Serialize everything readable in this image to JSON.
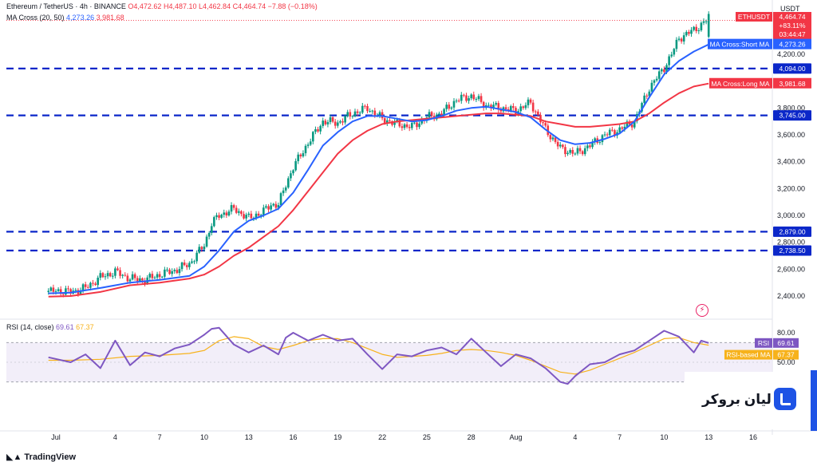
{
  "legend": {
    "symbol": "Ethereum / TetherUS · 4h · BINANCE",
    "open": "O4,472.62",
    "high": "H4,487.10",
    "low": "L4,462.84",
    "close": "C4,464.74",
    "change": "−7.88 (−0.18%)",
    "ma_label": "MA Cross (20, 50)",
    "ma_short": "4,273.26",
    "ma_long": "3,981.68",
    "rsi_label": "RSI (14, close)",
    "rsi_value": "69.61",
    "rsi_ma_value": "67.37"
  },
  "axis": {
    "currency": "USDT",
    "price_ticks": [
      "4,200.00",
      "3,800.00",
      "3,600.00",
      "3,400.00",
      "3,200.00",
      "3,000.00",
      "2,800.00",
      "2,600.00",
      "2,400.00"
    ],
    "rsi_ticks": [
      "80.00",
      "50.00"
    ],
    "x_ticks": [
      "Jul",
      "4",
      "7",
      "10",
      "13",
      "16",
      "19",
      "22",
      "25",
      "28",
      "Aug",
      "4",
      "7",
      "10",
      "13",
      "16"
    ]
  },
  "tags": {
    "symbol_tag": "ETHUSDT",
    "symbol_price": "4,464.74",
    "pct": "+83.11%",
    "countdown": "03:44:47",
    "short_ma_label": "MA Cross:Short MA",
    "short_ma_value": "4,273.26",
    "long_ma_label": "MA Cross:Long MA",
    "long_ma_value": "3,981.68",
    "level_4094": "4,094.00",
    "level_3745": "3,745.00",
    "level_2879": "2,879.00",
    "level_2738": "2,738.50",
    "rsi_tag": "RSI",
    "rsi_tag_value": "69.61",
    "rsi_ma_tag": "RSI-based MA",
    "rsi_ma_tag_value": "67.37"
  },
  "brand": {
    "name": "لیان بروکر",
    "tradingview": "TradingView"
  },
  "colors": {
    "up": "#089981",
    "down": "#f23645",
    "short_ma": "#2962ff",
    "long_ma": "#f23645",
    "level": "#0b27c9",
    "rsi": "#7e57c2",
    "rsi_ma": "#f7b21b",
    "rsi_band": "#ede7f6"
  },
  "chart_data": [
    {
      "type": "candlestick",
      "title": "Ethereum / TetherUS · 4h · BINANCE",
      "ylabel": "USDT",
      "ylim": [
        2300,
        4550
      ],
      "x_range_days": [
        29.5,
        47
      ],
      "x_tick_days": [
        30,
        34,
        37,
        40,
        43,
        46,
        49,
        52,
        55,
        58,
        61,
        65,
        68,
        71,
        74,
        77
      ],
      "series": [
        {
          "name": "Close",
          "type": "line",
          "x": [
            29.5,
            30,
            31,
            32,
            33,
            34,
            35,
            36,
            37,
            38,
            39,
            40,
            40.5,
            41,
            42,
            43,
            44,
            44.5,
            45,
            45.5,
            46,
            47,
            48,
            49,
            50,
            51,
            52,
            53,
            54,
            55,
            56,
            57,
            58,
            59,
            60,
            61,
            62,
            62.5,
            63,
            64,
            65,
            66,
            67,
            68,
            69,
            70,
            71,
            71.5,
            72,
            73,
            73.5,
            74
          ],
          "values": [
            2430,
            2440,
            2430,
            2460,
            2540,
            2580,
            2530,
            2520,
            2560,
            2590,
            2640,
            2780,
            2940,
            3000,
            3050,
            2980,
            3030,
            3080,
            3080,
            3230,
            3360,
            3540,
            3700,
            3690,
            3760,
            3800,
            3720,
            3680,
            3660,
            3730,
            3760,
            3860,
            3890,
            3820,
            3800,
            3780,
            3840,
            3740,
            3640,
            3500,
            3460,
            3520,
            3600,
            3640,
            3700,
            3950,
            4100,
            4200,
            4320,
            4380,
            4420,
            4470
          ]
        },
        {
          "name": "MA Cross:Short MA (20)",
          "type": "line",
          "x": [
            29.5,
            31,
            33,
            35,
            37,
            39,
            40,
            41,
            42,
            43,
            44,
            45,
            46,
            47,
            48,
            49,
            50,
            51,
            52,
            53,
            54,
            55,
            56,
            57,
            58,
            59,
            60,
            61,
            62,
            63,
            64,
            65,
            66,
            67,
            68,
            69,
            70,
            71,
            72,
            73,
            74
          ],
          "values": [
            2420,
            2425,
            2460,
            2500,
            2520,
            2550,
            2620,
            2740,
            2880,
            2960,
            3000,
            3050,
            3170,
            3340,
            3520,
            3620,
            3700,
            3740,
            3740,
            3720,
            3700,
            3710,
            3740,
            3780,
            3800,
            3810,
            3790,
            3770,
            3730,
            3640,
            3560,
            3530,
            3540,
            3570,
            3610,
            3700,
            3880,
            4050,
            4150,
            4220,
            4273
          ]
        },
        {
          "name": "MA Cross:Long MA (50)",
          "type": "line",
          "x": [
            29.5,
            31,
            33,
            35,
            37,
            39,
            40,
            41,
            42,
            43,
            44,
            45,
            46,
            47,
            48,
            49,
            50,
            51,
            52,
            53,
            54,
            55,
            56,
            57,
            58,
            59,
            60,
            61,
            62,
            63,
            64,
            65,
            66,
            67,
            68,
            69,
            70,
            71,
            72,
            73,
            74
          ],
          "values": [
            2395,
            2400,
            2430,
            2480,
            2500,
            2530,
            2560,
            2620,
            2700,
            2760,
            2840,
            2920,
            3040,
            3180,
            3320,
            3460,
            3560,
            3630,
            3680,
            3700,
            3710,
            3720,
            3730,
            3740,
            3750,
            3760,
            3760,
            3750,
            3740,
            3700,
            3680,
            3660,
            3660,
            3670,
            3680,
            3700,
            3760,
            3840,
            3910,
            3960,
            3982
          ]
        }
      ],
      "levels": [
        4094,
        3745,
        2879,
        2738.5
      ],
      "last_price": 4464.74
    },
    {
      "type": "line",
      "title": "RSI (14, close)",
      "ylim": [
        20,
        90
      ],
      "band": [
        30,
        70
      ],
      "series": [
        {
          "name": "RSI",
          "x": [
            29.5,
            31,
            32,
            33,
            34,
            35,
            36,
            37,
            38,
            39,
            40,
            40.5,
            41,
            42,
            43,
            44,
            45,
            45.5,
            46,
            47,
            48,
            49,
            50,
            51,
            52,
            53,
            54,
            55,
            56,
            57,
            58,
            59,
            60,
            61,
            62,
            63,
            64,
            64.5,
            65,
            66,
            67,
            68,
            69,
            70,
            71,
            72,
            73,
            73.5,
            74
          ],
          "values": [
            55,
            50,
            58,
            44,
            72,
            47,
            60,
            56,
            64,
            68,
            78,
            84,
            85,
            68,
            60,
            67,
            58,
            75,
            80,
            72,
            78,
            72,
            74,
            58,
            43,
            58,
            56,
            62,
            65,
            58,
            74,
            60,
            46,
            58,
            54,
            44,
            30,
            28,
            36,
            48,
            50,
            58,
            62,
            72,
            82,
            76,
            60,
            72,
            69.61
          ]
        },
        {
          "name": "RSI-based MA",
          "x": [
            29.5,
            31,
            33,
            35,
            37,
            39,
            40,
            41,
            42,
            43,
            44,
            45,
            46,
            47,
            48,
            49,
            50,
            51,
            52,
            53,
            54,
            55,
            56,
            57,
            58,
            59,
            60,
            61,
            62,
            63,
            64,
            65,
            66,
            67,
            68,
            69,
            70,
            71,
            72,
            73,
            74
          ],
          "values": [
            52,
            52,
            53,
            56,
            57,
            59,
            62,
            72,
            76,
            74,
            66,
            63,
            67,
            72,
            74,
            74,
            70,
            64,
            58,
            55,
            56,
            57,
            59,
            62,
            63,
            62,
            60,
            57,
            52,
            46,
            40,
            38,
            42,
            48,
            54,
            60,
            67,
            74,
            75,
            70,
            67.37
          ]
        }
      ],
      "levels": [
        80,
        50
      ]
    }
  ]
}
